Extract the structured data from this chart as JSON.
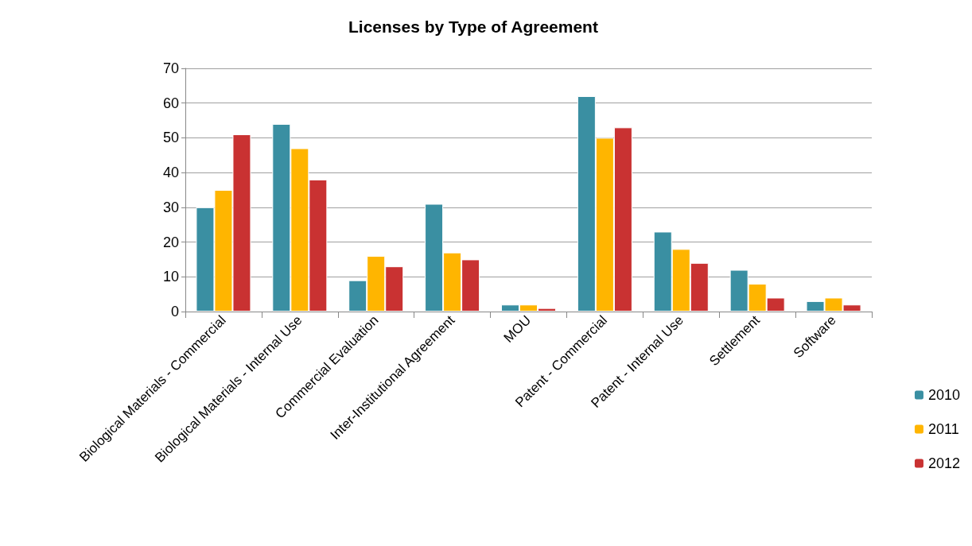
{
  "chart_data": {
    "type": "bar",
    "title": "Licenses by Type of Agreement",
    "categories": [
      "Biological Materials - Commercial",
      "Biological Materials - Internal Use",
      "Commercial Evaluation",
      "Inter-Institutional Agreement",
      "MOU",
      "Patent - Commercial",
      "Patent - Internal Use",
      "Settlement",
      "Software"
    ],
    "series": [
      {
        "name": "2010",
        "color": "#3a8fa2",
        "values": [
          30,
          54,
          9,
          31,
          2,
          62,
          23,
          12,
          3
        ]
      },
      {
        "name": "2011",
        "color": "#ffb500",
        "values": [
          35,
          47,
          16,
          17,
          2,
          50,
          18,
          8,
          4
        ]
      },
      {
        "name": "2012",
        "color": "#c93232",
        "values": [
          51,
          38,
          13,
          15,
          1,
          53,
          14,
          4,
          2
        ]
      }
    ],
    "ylim": [
      0,
      70
    ],
    "yticks": [
      0,
      10,
      20,
      30,
      40,
      50,
      60,
      70
    ],
    "grid": "y",
    "legend": "right"
  }
}
